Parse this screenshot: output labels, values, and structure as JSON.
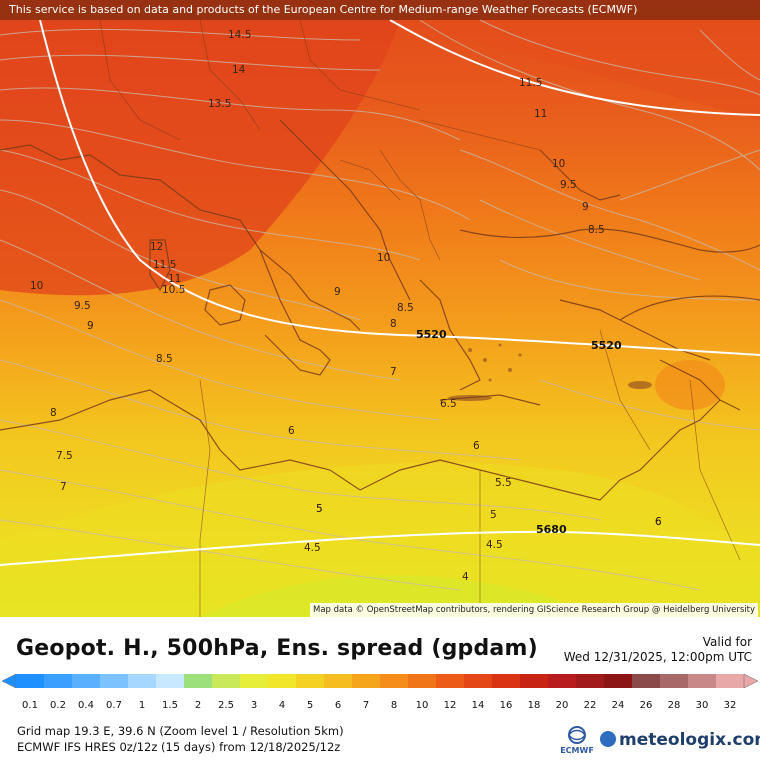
{
  "banner": "This service is based on data and products of the European Centre for Medium-range Weather Forecasts (ECMWF)",
  "attribution": "Map data © OpenStreetMap contributors, rendering GIScience Research Group @ Heidelberg University",
  "title": "Geopot. H., 500hPa, Ens. spread (gpdam)",
  "valid_label": "Valid for",
  "valid_time": "Wed 12/31/2025, 12:00pm UTC",
  "grid_info": "Grid map 19.3 E, 39.6 N (Zoom level 1 / Resolution 5km)",
  "model_info": "ECMWF IFS HRES 0z/12z (15 days)  from  12/18/2025/12z",
  "ecmwf_logo": "ECMWF",
  "brand": "meteologix.com",
  "scale": {
    "labels": [
      "0.1",
      "0.2",
      "0.4",
      "0.7",
      "1",
      "1.5",
      "2",
      "2.5",
      "3",
      "4",
      "5",
      "6",
      "7",
      "8",
      "10",
      "12",
      "14",
      "16",
      "18",
      "20",
      "22",
      "24",
      "26",
      "28",
      "30",
      "32"
    ],
    "colors": [
      "#1e90ff",
      "#3aa0ff",
      "#5ab0ff",
      "#7cc2ff",
      "#a6d8ff",
      "#c8e8ff",
      "#9be07a",
      "#c8ea5a",
      "#e6ee3a",
      "#f2e62a",
      "#f4d224",
      "#f5bd1f",
      "#f5a51c",
      "#f48d1a",
      "#f07418",
      "#ec5c16",
      "#e44615",
      "#d83414",
      "#c82414",
      "#b81c1c",
      "#a21a1a",
      "#8c1616",
      "#8a4a4a",
      "#a86868",
      "#c88888",
      "#e8a8a8"
    ]
  },
  "map": {
    "colors": {
      "red_orange": "#e8531c",
      "orange": "#f07a1a",
      "amber": "#f4a51c",
      "yellow": "#f0d41e",
      "lime_yellow": "#e2e824"
    },
    "spread_labels": [
      {
        "text": "14.5"
      },
      {
        "text": "14"
      },
      {
        "text": "13.5"
      },
      {
        "text": "12"
      },
      {
        "text": "11.5"
      },
      {
        "text": "11"
      },
      {
        "text": "10.5"
      },
      {
        "text": "10"
      },
      {
        "text": "9.5"
      },
      {
        "text": "9"
      },
      {
        "text": "8.5"
      },
      {
        "text": "8"
      },
      {
        "text": "7.5"
      },
      {
        "text": "7"
      },
      {
        "text": "6"
      },
      {
        "text": "5"
      },
      {
        "text": "11.5"
      },
      {
        "text": "11"
      },
      {
        "text": "10"
      },
      {
        "text": "9.5"
      },
      {
        "text": "9"
      },
      {
        "text": "8.5"
      },
      {
        "text": "10"
      },
      {
        "text": "9"
      },
      {
        "text": "8.5"
      },
      {
        "text": "8"
      },
      {
        "text": "7"
      },
      {
        "text": "6.5"
      },
      {
        "text": "6"
      },
      {
        "text": "6"
      },
      {
        "text": "5.5"
      },
      {
        "text": "5"
      },
      {
        "text": "5"
      },
      {
        "text": "4.5"
      },
      {
        "text": "4.5"
      },
      {
        "text": "4"
      },
      {
        "text": "6"
      }
    ],
    "height_labels": [
      {
        "text": "5520"
      },
      {
        "text": "5520"
      },
      {
        "text": "5680"
      }
    ]
  }
}
